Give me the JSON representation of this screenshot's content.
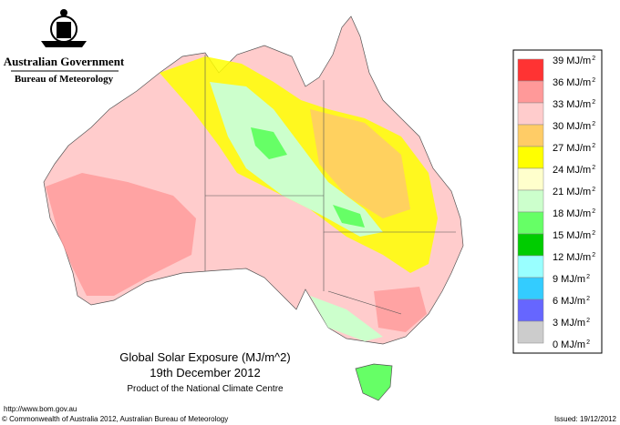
{
  "header": {
    "government": "Australian Government",
    "agency": "Bureau of Meteorology"
  },
  "map": {
    "title": "Global Solar Exposure (MJ/m^2)",
    "date": "19th December 2012",
    "product": "Product of the National Climate Centre"
  },
  "legend": {
    "labels": [
      "39 MJ/m",
      "36 MJ/m",
      "33 MJ/m",
      "30 MJ/m",
      "27 MJ/m",
      "24 MJ/m",
      "21 MJ/m",
      "18 MJ/m",
      "15 MJ/m",
      "12 MJ/m",
      "9 MJ/m",
      "6 MJ/m",
      "3 MJ/m",
      "0 MJ/m"
    ],
    "unit_exponent": "2",
    "colors": [
      "#ff3333",
      "#ff9999",
      "#ffcccc",
      "#ffcc66",
      "#ffff00",
      "#ffffcc",
      "#ccffcc",
      "#66ff66",
      "#00cc00",
      "#99ffff",
      "#33ccff",
      "#6666ff",
      "#cccccc"
    ]
  },
  "footer": {
    "url": "http://www.bom.gov.au",
    "copyright": "© Commonwealth of Australia 2012, Australian Bureau of Meteorology",
    "issued": "Issued: 19/12/2012"
  }
}
